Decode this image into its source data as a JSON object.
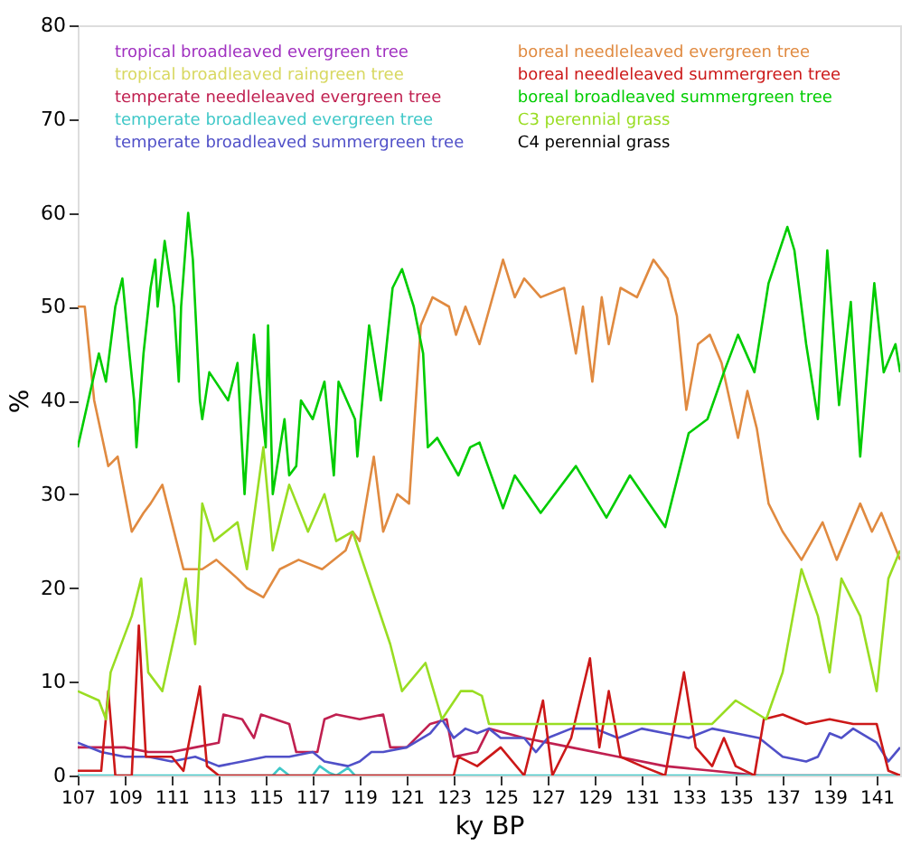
{
  "chart_data": {
    "type": "line",
    "xlabel": "ky BP",
    "ylabel": "%",
    "xlim": [
      107,
      142
    ],
    "ylim": [
      0,
      80
    ],
    "xticks": [
      107,
      109,
      111,
      113,
      115,
      117,
      119,
      121,
      123,
      125,
      127,
      129,
      131,
      133,
      135,
      137,
      139,
      141
    ],
    "yticks": [
      0,
      10,
      20,
      30,
      40,
      50,
      60,
      70,
      80
    ],
    "grid": false,
    "legend": "top",
    "series": [
      {
        "name": "tropical broadleaved evergreen tree",
        "color": "#a030c0"
      },
      {
        "name": "tropical broadleaved raingreen tree",
        "color": "#d8d860"
      },
      {
        "name": "temperate needleleaved evergreen tree",
        "color": "#c02050",
        "x": [
          107,
          109,
          110,
          111,
          112,
          113,
          113.2,
          114,
          114.5,
          114.8,
          116,
          116.3,
          117.2,
          117.5,
          118,
          119,
          120,
          120.3,
          121,
          122,
          122.7,
          123,
          124,
          124.5,
          126,
          128,
          130,
          132,
          134,
          136,
          142
        ],
        "values": [
          3,
          3,
          2.5,
          2.5,
          3,
          3.5,
          6.5,
          6,
          4,
          6.5,
          5.5,
          2.5,
          2.5,
          6,
          6.5,
          6,
          6.5,
          3,
          3,
          5.5,
          6,
          2,
          2.5,
          5,
          4,
          3,
          2,
          1,
          0.5,
          0,
          0
        ]
      },
      {
        "name": "temperate broadleaved evergreen tree",
        "color": "#40c8c8",
        "x": [
          107,
          115.3,
          115.6,
          116,
          117,
          117.3,
          117.7,
          118,
          118.5,
          118.8,
          142
        ],
        "values": [
          0,
          0,
          0.8,
          0,
          0,
          1,
          0.3,
          0,
          0.8,
          0,
          0
        ]
      },
      {
        "name": "temperate broadleaved summergreen tree",
        "color": "#5050c8",
        "x": [
          107,
          108,
          109,
          110,
          111,
          112,
          113,
          114,
          115,
          116,
          117,
          117.5,
          118.5,
          119,
          119.5,
          120,
          121,
          122,
          122.5,
          123,
          123.5,
          124,
          124.5,
          125,
          126,
          126.5,
          127,
          128,
          129,
          130,
          131,
          132,
          133,
          133.5,
          134,
          135,
          136,
          137,
          138,
          138.5,
          139,
          139.5,
          140,
          141,
          141.5,
          142
        ],
        "values": [
          3.5,
          2.5,
          2,
          2,
          1.5,
          2,
          1,
          1.5,
          2,
          2,
          2.5,
          1.5,
          1,
          1.5,
          2.5,
          2.5,
          3,
          4.5,
          6,
          4,
          5,
          4.5,
          5,
          4,
          4,
          2.5,
          4,
          5,
          5,
          4,
          5,
          4.5,
          4,
          4.5,
          5,
          4.5,
          4,
          2,
          1.5,
          2,
          4.5,
          4,
          5,
          3.5,
          1.5,
          3
        ]
      },
      {
        "name": "boreal needleleaved evergreen tree",
        "color": "#e08a40",
        "x": [
          107,
          107.3,
          107.7,
          108.3,
          108.7,
          109.3,
          109.8,
          110.1,
          110.6,
          111,
          111.5,
          112.3,
          112.9,
          113.8,
          114.2,
          114.9,
          115.6,
          116.4,
          117.4,
          118.4,
          118.7,
          119,
          119.6,
          120,
          120.6,
          121.1,
          121.6,
          122.1,
          122.8,
          123.1,
          123.5,
          124.1,
          125.1,
          125.6,
          126,
          126.7,
          127.7,
          128.2,
          128.5,
          128.9,
          129.3,
          129.6,
          130.1,
          130.8,
          131.5,
          132.1,
          132.5,
          132.9,
          133.4,
          133.9,
          134.4,
          135.1,
          135.5,
          135.9,
          136.4,
          137,
          137.8,
          138.7,
          139.3,
          140.3,
          140.8,
          141.2,
          142
        ],
        "values": [
          50,
          50,
          40,
          33,
          34,
          26,
          28,
          29,
          31,
          27,
          22,
          22,
          23,
          21,
          20,
          19,
          22,
          23,
          22,
          24,
          26,
          25,
          34,
          26,
          30,
          29,
          48,
          51,
          50,
          47,
          50,
          46,
          55,
          51,
          53,
          51,
          52,
          45,
          50,
          42,
          51,
          46,
          52,
          51,
          55,
          53,
          49,
          39,
          46,
          47,
          44,
          36,
          41,
          37,
          29,
          26,
          23,
          27,
          23,
          29,
          26,
          28,
          23
        ]
      },
      {
        "name": "boreal needleleaved summergreen tree",
        "color": "#cc1818",
        "x": [
          107,
          108,
          108.3,
          108.6,
          109.3,
          109.6,
          109.9,
          111,
          111.5,
          112.2,
          112.5,
          113,
          123,
          123.2,
          124,
          125,
          126,
          126.8,
          127.2,
          128,
          128.8,
          129.2,
          129.6,
          130.1,
          131,
          132,
          132.8,
          133.3,
          134,
          134.5,
          135,
          135.8,
          136.2,
          137,
          138,
          139,
          140,
          141,
          141.5,
          142
        ],
        "values": [
          0.5,
          0.5,
          9,
          0,
          0,
          16,
          2,
          2,
          0.5,
          9.5,
          1,
          0,
          0,
          2,
          1,
          3,
          0,
          8,
          0,
          4,
          12.5,
          3,
          9,
          2,
          1,
          0,
          11,
          3,
          1,
          4,
          1,
          0,
          6,
          6.5,
          5.5,
          6,
          5.5,
          5.5,
          0.5,
          0
        ]
      },
      {
        "name": "boreal broadleaved summergreen tree",
        "color": "#00cc00",
        "x": [
          107,
          107.9,
          108.2,
          108.6,
          108.9,
          109.2,
          109.4,
          109.5,
          109.8,
          110.1,
          110.3,
          110.4,
          110.7,
          111.1,
          111.3,
          111.4,
          111.7,
          111.9,
          112.2,
          112.3,
          112.6,
          113.4,
          113.8,
          114.1,
          114.5,
          115,
          115.1,
          115.3,
          115.8,
          116,
          116.3,
          116.5,
          117,
          117.5,
          117.9,
          118.1,
          118.8,
          118.9,
          119.4,
          119.9,
          120.4,
          120.8,
          121.3,
          121.7,
          121.9,
          122.3,
          123.2,
          123.7,
          124.1,
          125.1,
          125.6,
          126.7,
          128.2,
          129.5,
          130.5,
          132,
          133,
          133.8,
          134.5,
          135.1,
          135.8,
          136.4,
          137.2,
          137.5,
          138,
          138.5,
          138.9,
          139.4,
          139.9,
          140.3,
          140.9,
          141.3,
          141.8,
          142
        ],
        "values": [
          35,
          45,
          42,
          50,
          53,
          45,
          40,
          35,
          45,
          52,
          55,
          50,
          57,
          50,
          42,
          50,
          60,
          55,
          40,
          38,
          43,
          40,
          44,
          30,
          47,
          35,
          48,
          30,
          38,
          32,
          33,
          40,
          38,
          42,
          32,
          42,
          38,
          34,
          48,
          40,
          52,
          54,
          50,
          45,
          35,
          36,
          32,
          35,
          35.5,
          28.5,
          32,
          28,
          33,
          27.5,
          32,
          26.5,
          36.5,
          38,
          43,
          47,
          43,
          52.5,
          58.5,
          56,
          46,
          38,
          56,
          39.5,
          50.5,
          34,
          52.5,
          43,
          46,
          43
        ]
      },
      {
        "name": "C3 perennial grass",
        "color": "#99dd22",
        "x": [
          107,
          107.9,
          108.2,
          108.4,
          109.3,
          109.7,
          110,
          110.6,
          111.3,
          111.6,
          112,
          112.3,
          112.8,
          113.8,
          114.2,
          114.9,
          115.3,
          116,
          116.8,
          117.5,
          118,
          118.7,
          119.5,
          120.3,
          120.8,
          121.8,
          122.5,
          123.3,
          123.8,
          124.2,
          124.5,
          126,
          128,
          130,
          132,
          134,
          135,
          136.3,
          137,
          137.8,
          138.5,
          139,
          139.5,
          140.3,
          141,
          141.5,
          142
        ],
        "values": [
          9,
          8,
          6,
          11,
          17,
          21,
          11,
          9,
          17,
          21,
          14,
          29,
          25,
          27,
          22,
          35,
          24,
          31,
          26,
          30,
          25,
          26,
          20,
          14,
          9,
          12,
          6,
          9,
          9,
          8.5,
          5.5,
          5.5,
          5.5,
          5.5,
          5.5,
          5.5,
          8,
          6,
          11,
          22,
          17,
          11,
          21,
          17,
          9,
          21,
          24
        ]
      },
      {
        "name": "C4 perennial grass",
        "color": "#000000"
      }
    ]
  }
}
